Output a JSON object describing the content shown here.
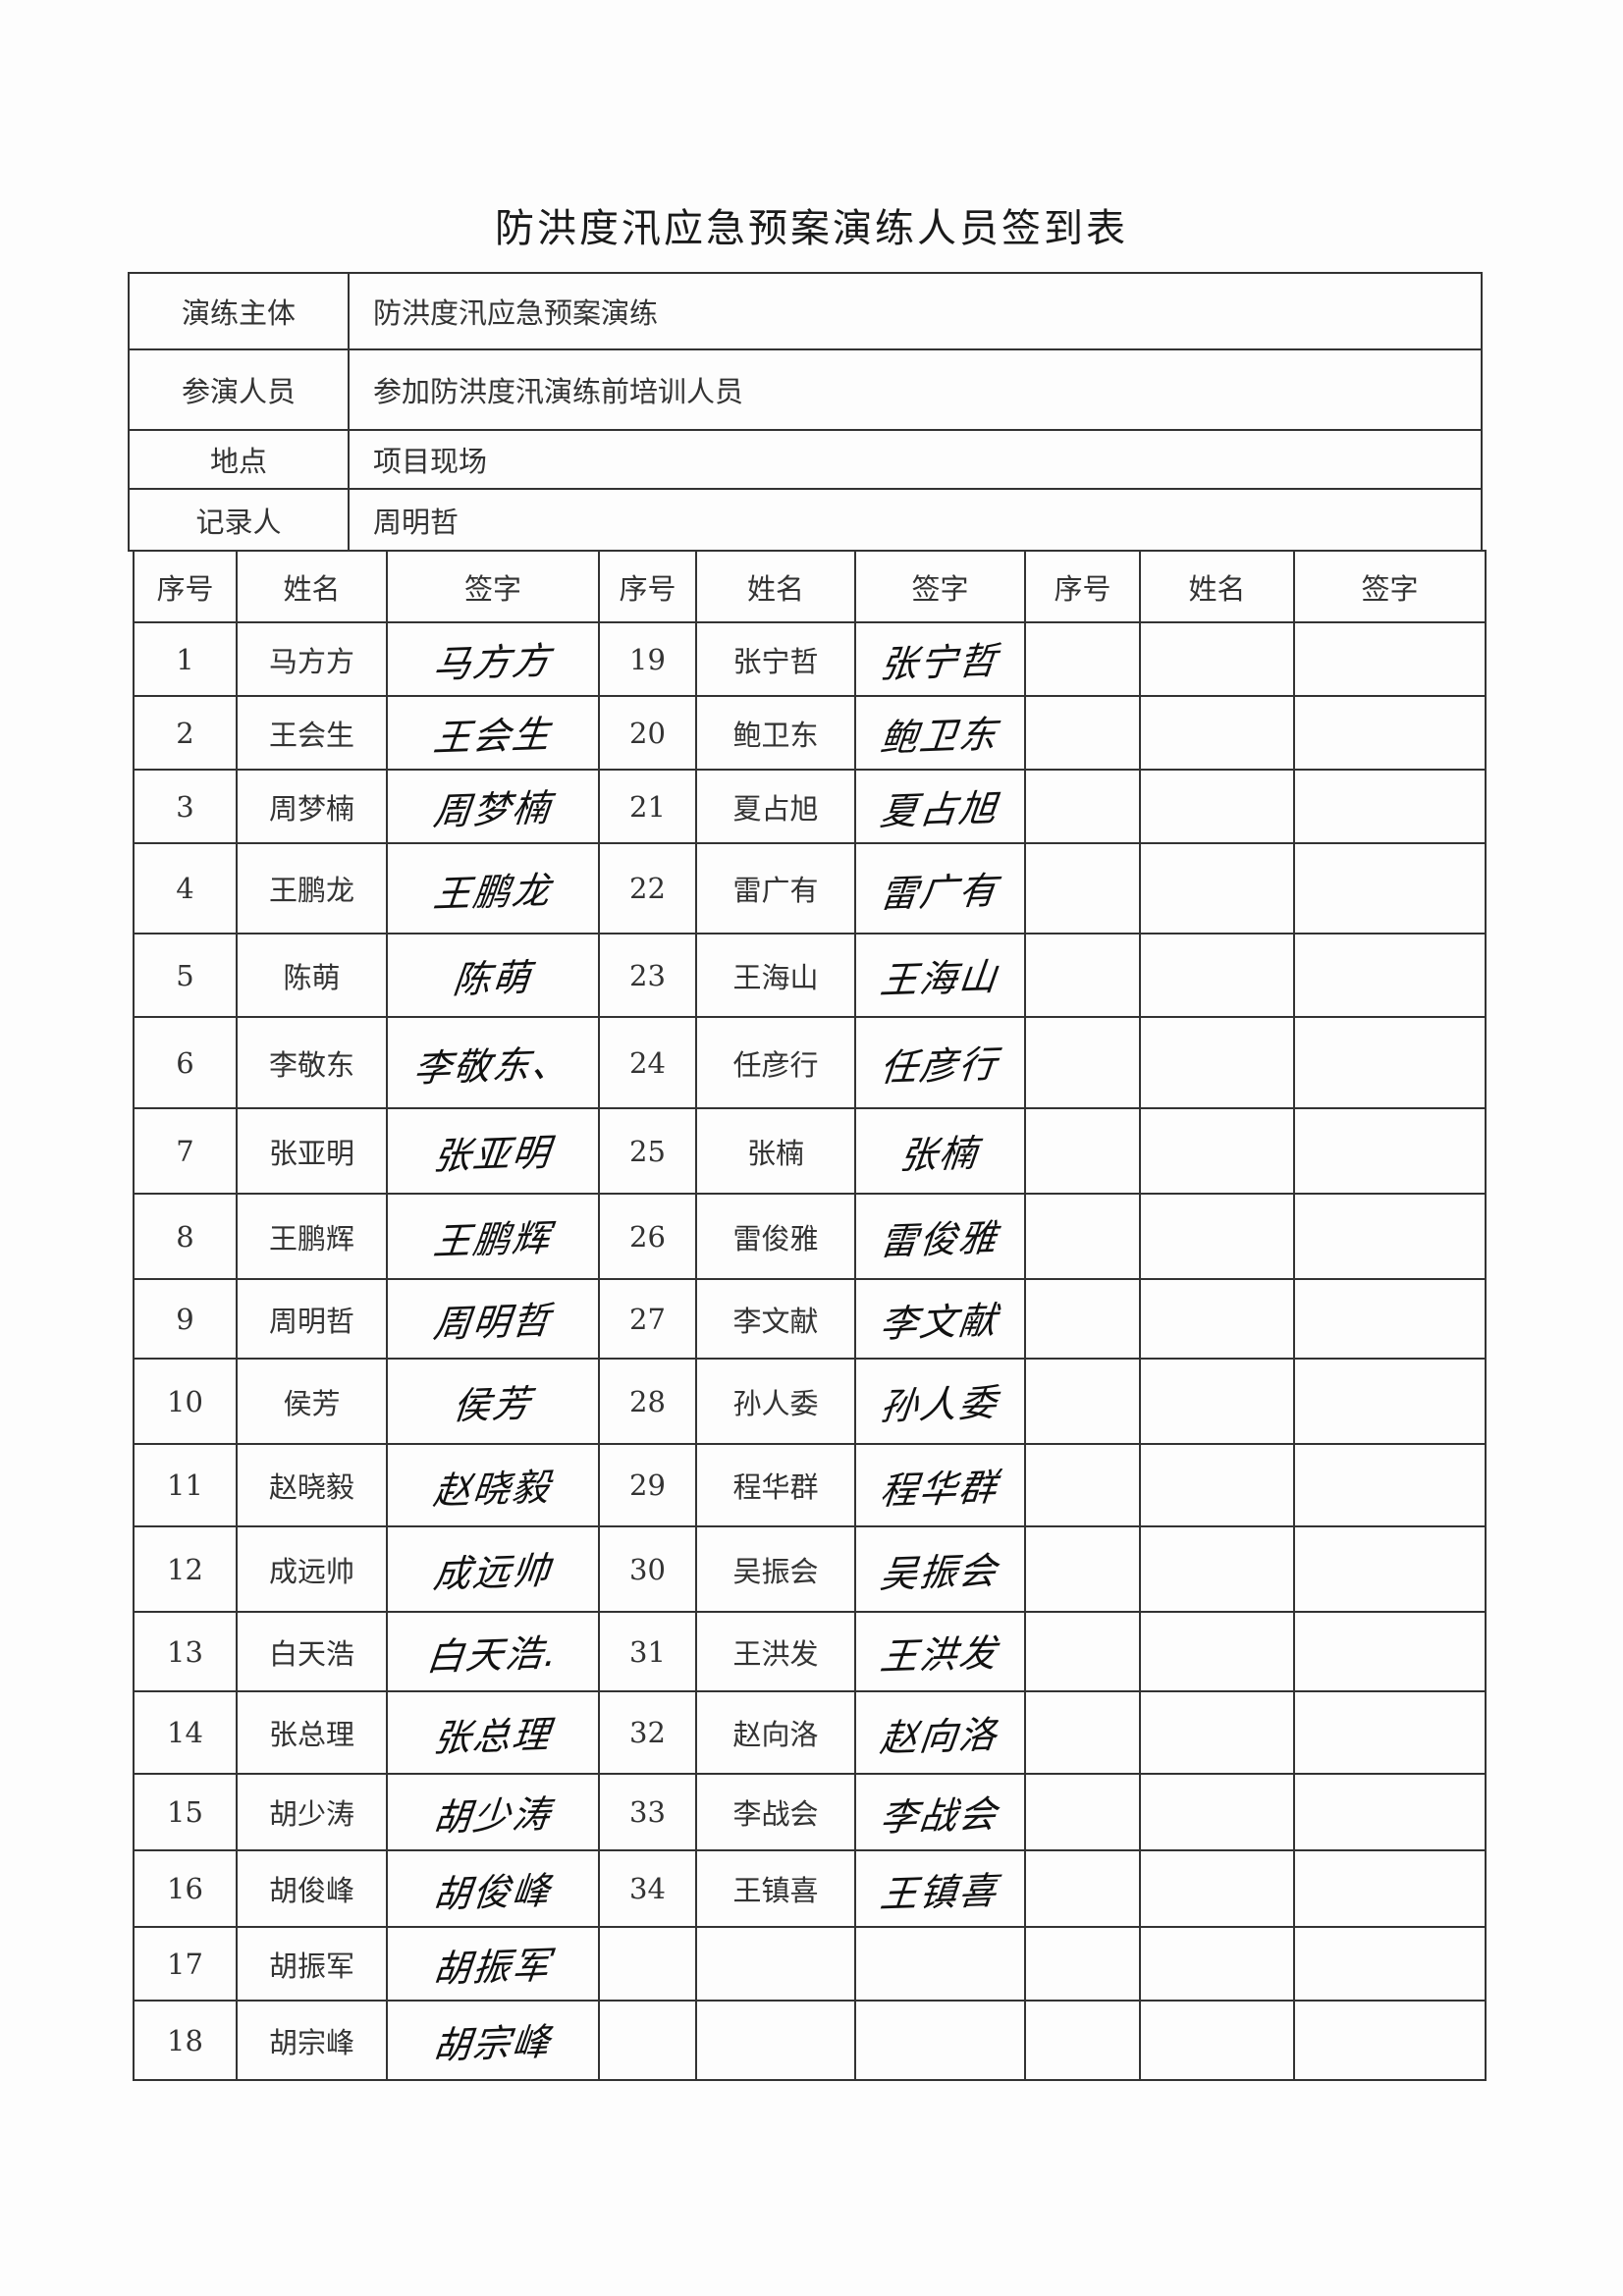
{
  "title": "防洪度汛应急预案演练人员签到表",
  "info": [
    {
      "label": "演练主体",
      "value": "防洪度汛应急预案演练"
    },
    {
      "label": "参演人员",
      "value": "参加防洪度汛演练前培训人员"
    },
    {
      "label": "地点",
      "value": "项目现场"
    },
    {
      "label": "记录人",
      "value": "周明哲"
    }
  ],
  "headers": {
    "no": "序号",
    "name": "姓名",
    "signature": "签字"
  },
  "attendees": [
    {
      "no": "1",
      "name": "马方方",
      "signature": "马方方"
    },
    {
      "no": "2",
      "name": "王会生",
      "signature": "王会生"
    },
    {
      "no": "3",
      "name": "周梦楠",
      "signature": "周梦楠"
    },
    {
      "no": "4",
      "name": "王鹏龙",
      "signature": "王鹏龙"
    },
    {
      "no": "5",
      "name": "陈萌",
      "signature": "陈萌"
    },
    {
      "no": "6",
      "name": "李敬东",
      "signature": "李敬东、"
    },
    {
      "no": "7",
      "name": "张亚明",
      "signature": "张亚明"
    },
    {
      "no": "8",
      "name": "王鹏辉",
      "signature": "王鹏辉"
    },
    {
      "no": "9",
      "name": "周明哲",
      "signature": "周明哲"
    },
    {
      "no": "10",
      "name": "侯芳",
      "signature": "侯芳"
    },
    {
      "no": "11",
      "name": "赵晓毅",
      "signature": "赵晓毅"
    },
    {
      "no": "12",
      "name": "成远帅",
      "signature": "成远帅"
    },
    {
      "no": "13",
      "name": "白天浩",
      "signature": "白天浩."
    },
    {
      "no": "14",
      "name": "张总理",
      "signature": "张总理"
    },
    {
      "no": "15",
      "name": "胡少涛",
      "signature": "胡少涛"
    },
    {
      "no": "16",
      "name": "胡俊峰",
      "signature": "胡俊峰"
    },
    {
      "no": "17",
      "name": "胡振军",
      "signature": "胡振军"
    },
    {
      "no": "18",
      "name": "胡宗峰",
      "signature": "胡宗峰"
    },
    {
      "no": "19",
      "name": "张宁哲",
      "signature": "张宁哲"
    },
    {
      "no": "20",
      "name": "鲍卫东",
      "signature": "鲍卫东"
    },
    {
      "no": "21",
      "name": "夏占旭",
      "signature": "夏占旭"
    },
    {
      "no": "22",
      "name": "雷广有",
      "signature": "雷广有"
    },
    {
      "no": "23",
      "name": "王海山",
      "signature": "王海山"
    },
    {
      "no": "24",
      "name": "任彦行",
      "signature": "任彦行"
    },
    {
      "no": "25",
      "name": "张楠",
      "signature": "张楠"
    },
    {
      "no": "26",
      "name": "雷俊雅",
      "signature": "雷俊雅"
    },
    {
      "no": "27",
      "name": "李文献",
      "signature": "李文献"
    },
    {
      "no": "28",
      "name": "孙人委",
      "signature": "孙人委"
    },
    {
      "no": "29",
      "name": "程华群",
      "signature": "程华群"
    },
    {
      "no": "30",
      "name": "吴振会",
      "signature": "吴振会"
    },
    {
      "no": "31",
      "name": "王洪发",
      "signature": "王洪发"
    },
    {
      "no": "32",
      "name": "赵向洛",
      "signature": "赵向洛"
    },
    {
      "no": "33",
      "name": "李战会",
      "signature": "李战会"
    },
    {
      "no": "34",
      "name": "王镇喜",
      "signature": "王镇喜"
    }
  ]
}
